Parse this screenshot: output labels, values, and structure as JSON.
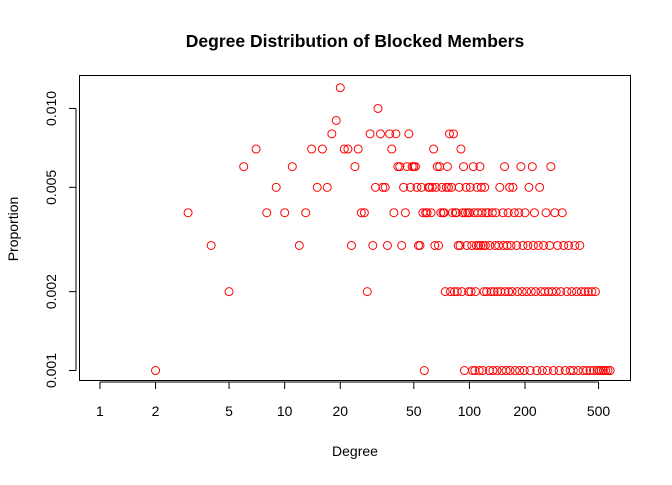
{
  "chart_data": {
    "type": "scatter",
    "title": "Degree Distribution of Blocked Members",
    "xlabel": "Degree",
    "ylabel": "Proportion",
    "x_scale": "log",
    "y_scale": "log",
    "xlim": [
      0.78,
      740
    ],
    "ylim": [
      0.00092,
      0.0133
    ],
    "x_ticks": [
      1,
      2,
      5,
      10,
      20,
      50,
      100,
      200,
      500
    ],
    "x_tick_labels": [
      "1",
      "2",
      "5",
      "10",
      "20",
      "50",
      "100",
      "200",
      "500"
    ],
    "y_ticks": [
      0.001,
      0.002,
      0.005,
      0.01
    ],
    "y_tick_labels": [
      "0.001",
      "0.002",
      "0.005",
      "0.010"
    ],
    "grid": false,
    "marker": "open-circle",
    "marker_color": "#ff0000",
    "points": [
      [
        2,
        0.001
      ],
      [
        3,
        0.004
      ],
      [
        4,
        0.003
      ],
      [
        5,
        0.002
      ],
      [
        6,
        0.006
      ],
      [
        7,
        0.007
      ],
      [
        8,
        0.004
      ],
      [
        9,
        0.005
      ],
      [
        10,
        0.004
      ],
      [
        11,
        0.006
      ],
      [
        12,
        0.003
      ],
      [
        13,
        0.004
      ],
      [
        14,
        0.007
      ],
      [
        15,
        0.005
      ],
      [
        16,
        0.007
      ],
      [
        17,
        0.005
      ],
      [
        18,
        0.008
      ],
      [
        19,
        0.009
      ],
      [
        20,
        0.012
      ],
      [
        21,
        0.007
      ],
      [
        22,
        0.007
      ],
      [
        23,
        0.003
      ],
      [
        24,
        0.006
      ],
      [
        25,
        0.007
      ],
      [
        26,
        0.004
      ],
      [
        27,
        0.004
      ],
      [
        28,
        0.002
      ],
      [
        29,
        0.008
      ],
      [
        30,
        0.003
      ],
      [
        31,
        0.005
      ],
      [
        32,
        0.01
      ],
      [
        33,
        0.008
      ],
      [
        34,
        0.005
      ],
      [
        35,
        0.005
      ],
      [
        36,
        0.003
      ],
      [
        37,
        0.008
      ],
      [
        38,
        0.007
      ],
      [
        39,
        0.004
      ],
      [
        40,
        0.008
      ],
      [
        41,
        0.006
      ],
      [
        42,
        0.006
      ],
      [
        43,
        0.003
      ],
      [
        44,
        0.005
      ],
      [
        45,
        0.004
      ],
      [
        46,
        0.006
      ],
      [
        47,
        0.008
      ],
      [
        48,
        0.005
      ],
      [
        49,
        0.006
      ],
      [
        50,
        0.006
      ],
      [
        51,
        0.006
      ],
      [
        52,
        0.005
      ],
      [
        53,
        0.003
      ],
      [
        54,
        0.003
      ],
      [
        55,
        0.005
      ],
      [
        56,
        0.004
      ],
      [
        57,
        0.001
      ],
      [
        58,
        0.004
      ],
      [
        59,
        0.004
      ],
      [
        60,
        0.005
      ],
      [
        61,
        0.005
      ],
      [
        62,
        0.004
      ],
      [
        63,
        0.005
      ],
      [
        64,
        0.007
      ],
      [
        65,
        0.003
      ],
      [
        66,
        0.005
      ],
      [
        67,
        0.006
      ],
      [
        68,
        0.003
      ],
      [
        69,
        0.006
      ],
      [
        70,
        0.004
      ],
      [
        71,
        0.005
      ],
      [
        72,
        0.004
      ],
      [
        73,
        0.004
      ],
      [
        74,
        0.002
      ],
      [
        75,
        0.005
      ],
      [
        76,
        0.006
      ],
      [
        77,
        0.005
      ],
      [
        78,
        0.008
      ],
      [
        79,
        0.002
      ],
      [
        80,
        0.005
      ],
      [
        81,
        0.004
      ],
      [
        82,
        0.008
      ],
      [
        83,
        0.002
      ],
      [
        84,
        0.004
      ],
      [
        85,
        0.004
      ],
      [
        86,
        0.002
      ],
      [
        87,
        0.003
      ],
      [
        88,
        0.005
      ],
      [
        89,
        0.003
      ],
      [
        90,
        0.007
      ],
      [
        91,
        0.002
      ],
      [
        92,
        0.004
      ],
      [
        93,
        0.006
      ],
      [
        94,
        0.001
      ],
      [
        95,
        0.004
      ],
      [
        96,
        0.005
      ],
      [
        97,
        0.003
      ],
      [
        98,
        0.004
      ],
      [
        99,
        0.002
      ],
      [
        100,
        0.004
      ],
      [
        101,
        0.005
      ],
      [
        102,
        0.002
      ],
      [
        103,
        0.003
      ],
      [
        104,
        0.001
      ],
      [
        105,
        0.006
      ],
      [
        106,
        0.004
      ],
      [
        107,
        0.001
      ],
      [
        108,
        0.002
      ],
      [
        109,
        0.003
      ],
      [
        110,
        0.005
      ],
      [
        111,
        0.004
      ],
      [
        112,
        0.003
      ],
      [
        113,
        0.001
      ],
      [
        114,
        0.006
      ],
      [
        115,
        0.003
      ],
      [
        116,
        0.005
      ],
      [
        117,
        0.004
      ],
      [
        118,
        0.001
      ],
      [
        119,
        0.003
      ],
      [
        120,
        0.002
      ],
      [
        121,
        0.005
      ],
      [
        122,
        0.003
      ],
      [
        123,
        0.004
      ],
      [
        124,
        0.002
      ],
      [
        126,
        0.004
      ],
      [
        128,
        0.001
      ],
      [
        129,
        0.003
      ],
      [
        131,
        0.002
      ],
      [
        133,
        0.004
      ],
      [
        134,
        0.001
      ],
      [
        136,
        0.002
      ],
      [
        138,
        0.003
      ],
      [
        139,
        0.004
      ],
      [
        141,
        0.001
      ],
      [
        142,
        0.002
      ],
      [
        144,
        0.003
      ],
      [
        146,
        0.005
      ],
      [
        148,
        0.002
      ],
      [
        150,
        0.001
      ],
      [
        152,
        0.004
      ],
      [
        153,
        0.003
      ],
      [
        155,
        0.006
      ],
      [
        156,
        0.002
      ],
      [
        158,
        0.001
      ],
      [
        160,
        0.003
      ],
      [
        162,
        0.004
      ],
      [
        163,
        0.002
      ],
      [
        165,
        0.005
      ],
      [
        166,
        0.001
      ],
      [
        168,
        0.003
      ],
      [
        170,
        0.002
      ],
      [
        172,
        0.005
      ],
      [
        175,
        0.004
      ],
      [
        177,
        0.001
      ],
      [
        180,
        0.003
      ],
      [
        182,
        0.002
      ],
      [
        185,
        0.004
      ],
      [
        187,
        0.001
      ],
      [
        190,
        0.006
      ],
      [
        193,
        0.002
      ],
      [
        195,
        0.003
      ],
      [
        198,
        0.001
      ],
      [
        200,
        0.004
      ],
      [
        204,
        0.002
      ],
      [
        207,
        0.003
      ],
      [
        210,
        0.005
      ],
      [
        213,
        0.001
      ],
      [
        216,
        0.002
      ],
      [
        219,
        0.006
      ],
      [
        222,
        0.003
      ],
      [
        225,
        0.004
      ],
      [
        228,
        0.002
      ],
      [
        232,
        0.001
      ],
      [
        236,
        0.003
      ],
      [
        240,
        0.005
      ],
      [
        244,
        0.002
      ],
      [
        248,
        0.001
      ],
      [
        252,
        0.003
      ],
      [
        256,
        0.002
      ],
      [
        260,
        0.004
      ],
      [
        264,
        0.001
      ],
      [
        268,
        0.002
      ],
      [
        272,
        0.003
      ],
      [
        276,
        0.006
      ],
      [
        280,
        0.002
      ],
      [
        285,
        0.001
      ],
      [
        290,
        0.004
      ],
      [
        295,
        0.002
      ],
      [
        300,
        0.003
      ],
      [
        306,
        0.001
      ],
      [
        312,
        0.002
      ],
      [
        318,
        0.004
      ],
      [
        324,
        0.003
      ],
      [
        330,
        0.001
      ],
      [
        337,
        0.002
      ],
      [
        344,
        0.003
      ],
      [
        351,
        0.001
      ],
      [
        358,
        0.002
      ],
      [
        365,
        0.001
      ],
      [
        372,
        0.003
      ],
      [
        380,
        0.002
      ],
      [
        388,
        0.001
      ],
      [
        396,
        0.003
      ],
      [
        404,
        0.002
      ],
      [
        413,
        0.001
      ],
      [
        422,
        0.002
      ],
      [
        431,
        0.001
      ],
      [
        440,
        0.002
      ],
      [
        450,
        0.001
      ],
      [
        460,
        0.002
      ],
      [
        470,
        0.001
      ],
      [
        481,
        0.002
      ],
      [
        492,
        0.001
      ],
      [
        504,
        0.001
      ],
      [
        517,
        0.001
      ],
      [
        531,
        0.001
      ],
      [
        546,
        0.001
      ],
      [
        562,
        0.001
      ],
      [
        578,
        0.001
      ]
    ]
  }
}
